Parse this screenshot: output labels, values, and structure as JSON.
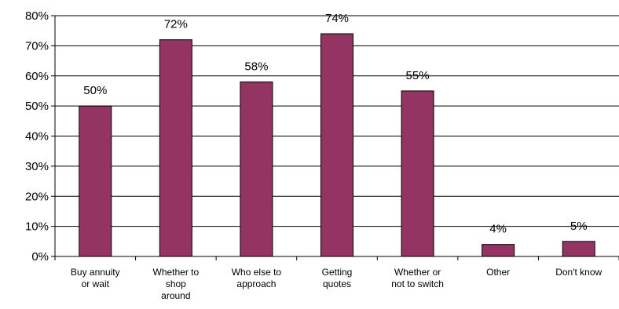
{
  "chart_data": {
    "type": "bar",
    "categories": [
      [
        "Buy annuity",
        "or wait"
      ],
      [
        "Whether to",
        "shop",
        "around"
      ],
      [
        "Who else to",
        "approach"
      ],
      [
        "Getting",
        "quotes"
      ],
      [
        "Whether or",
        "not to switch"
      ],
      [
        "Other"
      ],
      [
        "Don't know"
      ]
    ],
    "values": [
      50,
      72,
      58,
      74,
      55,
      4,
      5
    ],
    "value_labels": [
      "50%",
      "72%",
      "58%",
      "74%",
      "55%",
      "4%",
      "5%"
    ],
    "ylim": [
      0,
      80
    ],
    "yticks": [
      0,
      10,
      20,
      30,
      40,
      50,
      60,
      70,
      80
    ],
    "ytick_labels": [
      "0%",
      "10%",
      "20%",
      "30%",
      "40%",
      "50%",
      "60%",
      "70%",
      "80%"
    ],
    "grid": true,
    "bar_color": "#943462",
    "title": "",
    "xlabel": "",
    "ylabel": ""
  }
}
